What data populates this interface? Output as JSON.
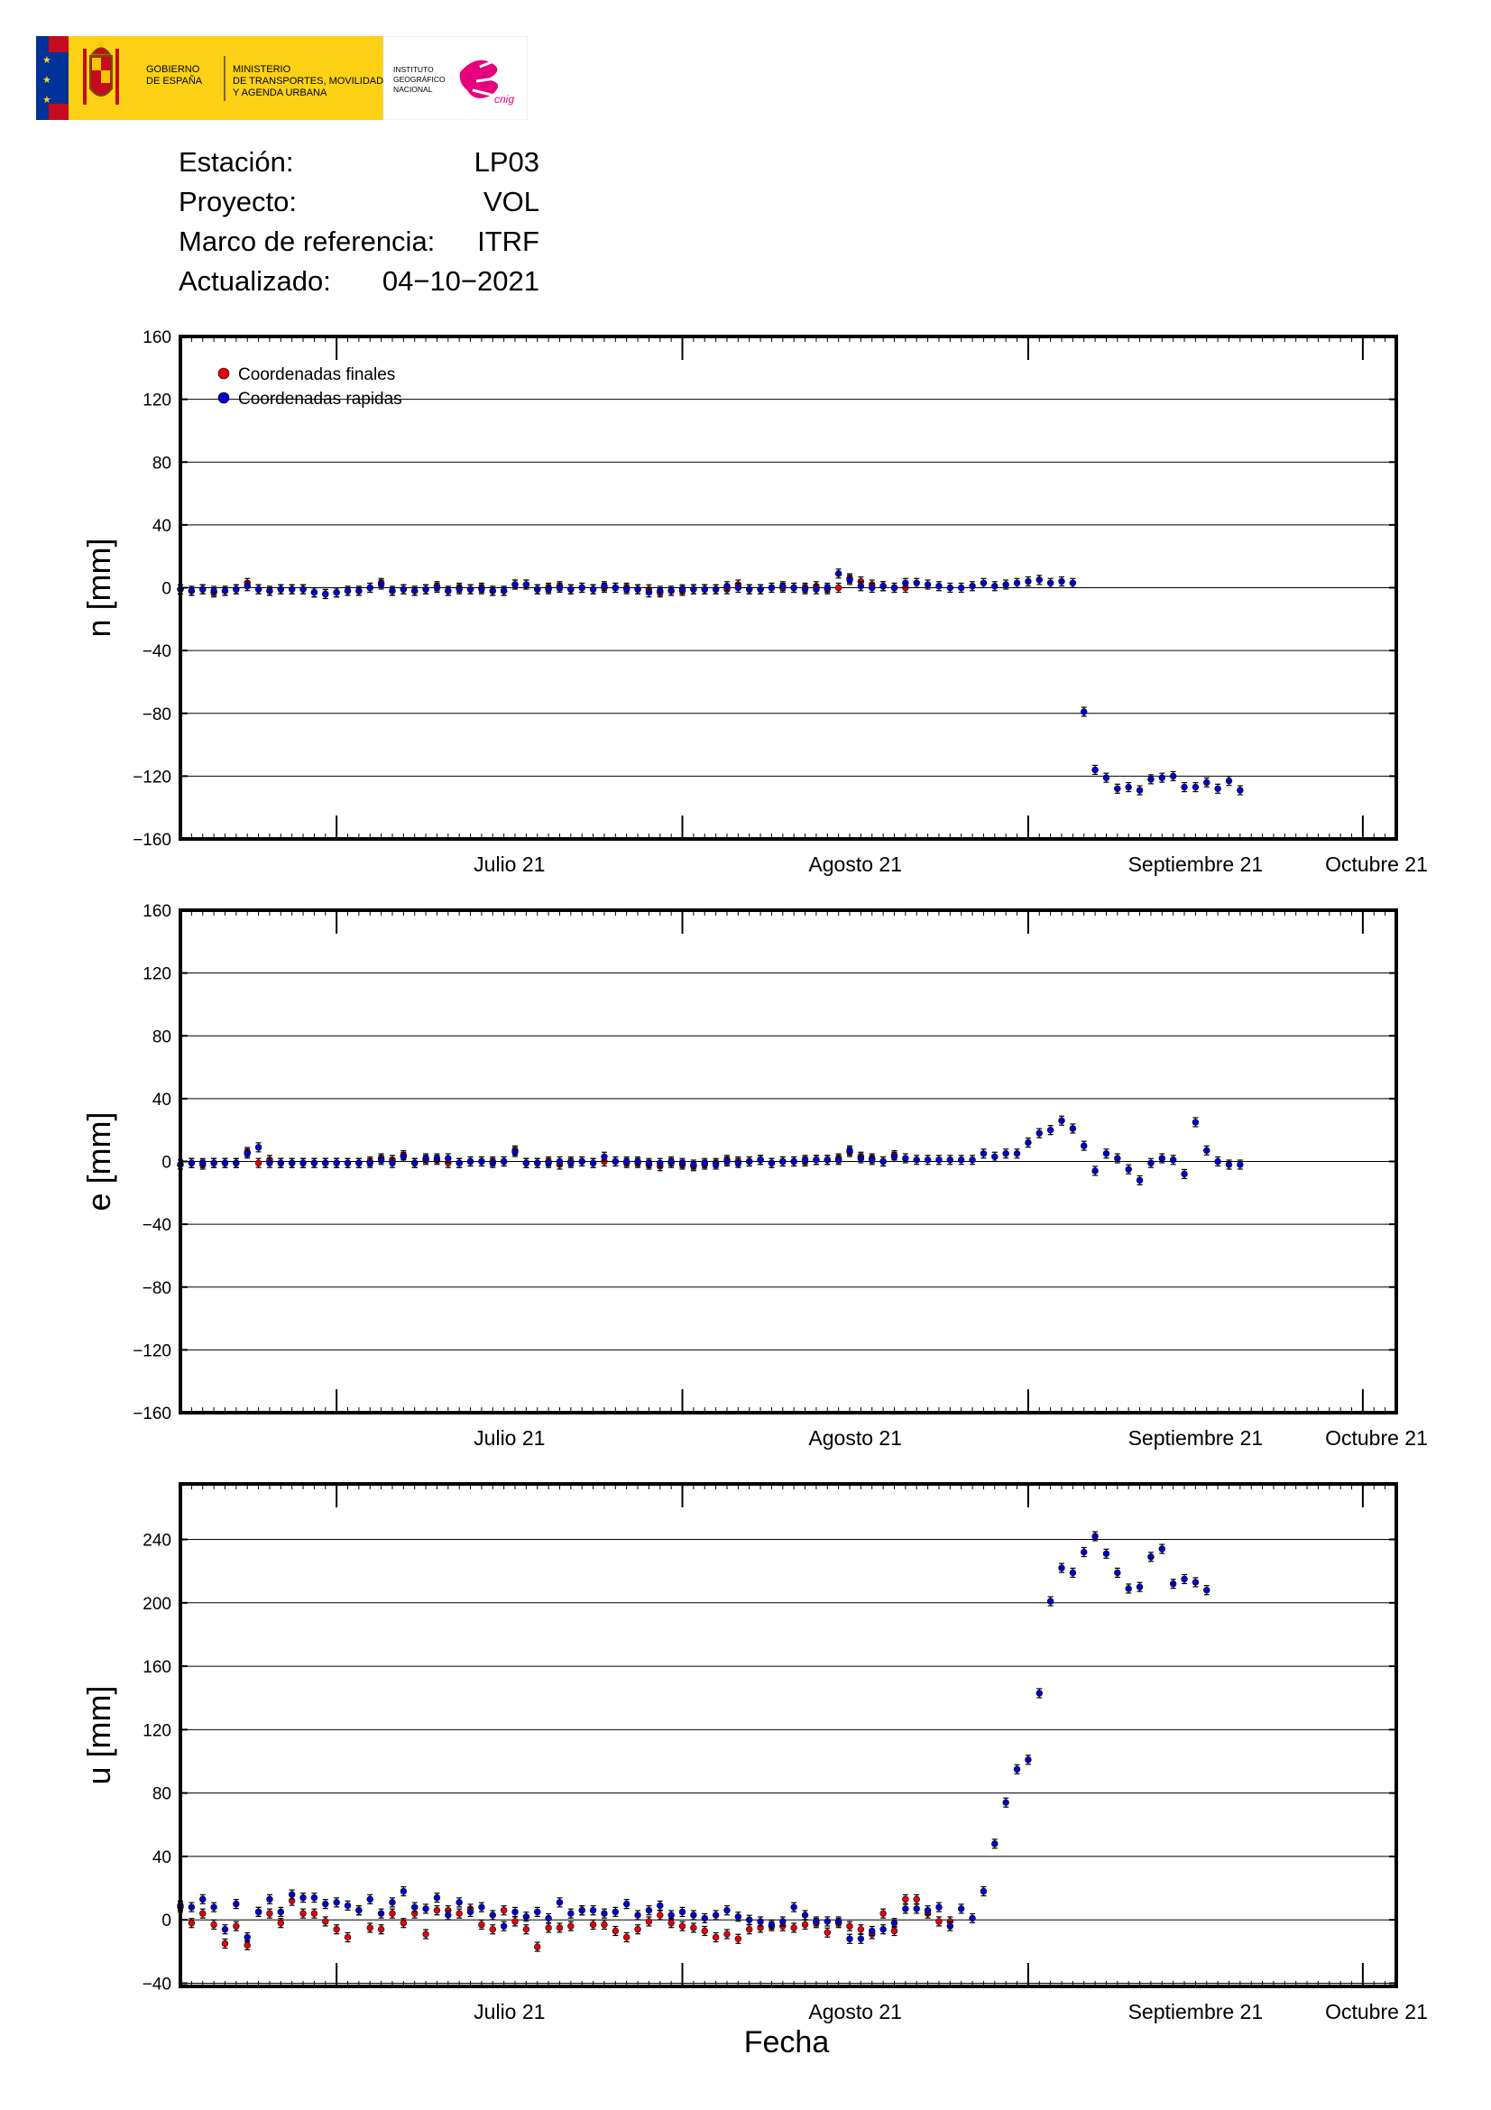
{
  "logo": {
    "gobierno": [
      "GOBIERNO",
      "DE ESPAÑA"
    ],
    "ministerio": [
      "MINISTERIO",
      "DE TRANSPORTES, MOVILIDAD",
      "Y AGENDA URBANA"
    ],
    "instituto": [
      "INSTITUTO",
      "GEOGRÁFICO",
      "NACIONAL"
    ],
    "cnig": "cnig",
    "colors": {
      "yellow": "#fcd116",
      "red": "#c60b1e",
      "eu_blue": "#003399",
      "cnig_magenta": "#e6007e"
    }
  },
  "header": {
    "rows": [
      {
        "label": "Estación:",
        "value": "LP03"
      },
      {
        "label": "Proyecto:",
        "value": "VOL"
      },
      {
        "label": "Marco de referencia:",
        "value": "ITRF"
      },
      {
        "label": "Actualizado:",
        "value": "04−10−2021"
      }
    ]
  },
  "legend": {
    "final_label": "Coordenadas finales",
    "rapid_label": "Coordenadas rapidas",
    "final_color": "#e3000f",
    "rapid_color": "#0000cc"
  },
  "xlabel": "Fecha",
  "chart_data": [
    {
      "type": "scatter",
      "ylabel": "n [mm]",
      "ylim": [
        -160,
        160
      ],
      "yticks": [
        160,
        120,
        80,
        40,
        0,
        -40,
        -80,
        -120,
        -160
      ],
      "x_domain": [
        "2021-06-17",
        "2021-10-04"
      ],
      "x_tick_labels": [
        {
          "date": "2021-07-01",
          "label": "Julio 21"
        },
        {
          "date": "2021-08-01",
          "label": "Agosto 21"
        },
        {
          "date": "2021-09-01",
          "label": "Septiembre 21"
        },
        {
          "date": "2021-10-01",
          "label": "Octubre 21"
        }
      ],
      "grid": "horizontal",
      "legend_position": "top-left",
      "series": [
        {
          "name": "Coordenadas finales",
          "color": "#e3000f",
          "start_date": "2021-06-17",
          "values": [
            -1,
            -2,
            -1,
            -3,
            -2,
            -1,
            3,
            -1,
            -2,
            -1,
            -1,
            -1,
            -3,
            -4,
            -3,
            -2,
            -2,
            0,
            3,
            -2,
            -1,
            -2,
            -1,
            1,
            -2,
            0,
            -1,
            0,
            -2,
            -2,
            2,
            2,
            -1,
            0,
            1,
            -1,
            0,
            -1,
            0,
            0,
            0,
            -1,
            -1,
            -3,
            -2,
            -2,
            -1,
            -1,
            -1,
            -1,
            2,
            -1,
            -1,
            0,
            0,
            0,
            0,
            1,
            -1,
            0,
            6,
            4,
            2,
            1,
            0,
            0,
            null,
            null,
            null,
            null,
            null,
            null,
            null,
            null,
            null,
            null,
            null,
            null,
            null,
            null,
            null,
            null,
            null,
            null,
            null,
            null,
            null,
            null,
            null,
            null,
            null,
            null,
            null,
            null,
            null,
            null,
            null,
            null,
            null,
            null,
            null
          ]
        },
        {
          "name": "Coordenadas rapidas",
          "color": "#0000cc",
          "start_date": "2021-06-17",
          "values": [
            -1,
            -2,
            -1,
            -2,
            -2,
            -1,
            1,
            -1,
            -2,
            -1,
            -1,
            -1,
            -3,
            -4,
            -3,
            -2,
            -2,
            0,
            2,
            -2,
            -1,
            -2,
            -1,
            0,
            -2,
            -1,
            -1,
            -1,
            -2,
            -2,
            2,
            2,
            -1,
            -1,
            0,
            -1,
            0,
            -1,
            1,
            0,
            -1,
            -1,
            -3,
            -2,
            -2,
            -1,
            -1,
            -1,
            -1,
            1,
            0,
            -1,
            -1,
            0,
            1,
            0,
            -1,
            -1,
            0,
            9,
            5,
            1,
            0,
            1,
            0,
            3,
            3,
            2,
            1,
            0,
            0,
            1,
            3,
            1,
            2,
            3,
            4,
            5,
            3,
            4,
            3,
            -79,
            -116,
            -121,
            -128,
            -127,
            -129,
            -122,
            -121,
            -120,
            -127,
            -127,
            -124,
            -128,
            -123,
            -129
          ]
        }
      ]
    },
    {
      "type": "scatter",
      "ylabel": "e [mm]",
      "ylim": [
        -160,
        160
      ],
      "yticks": [
        160,
        120,
        80,
        40,
        0,
        -40,
        -80,
        -120,
        -160
      ],
      "x_domain": [
        "2021-06-17",
        "2021-10-04"
      ],
      "x_tick_labels": [
        {
          "date": "2021-07-01",
          "label": "Julio 21"
        },
        {
          "date": "2021-08-01",
          "label": "Agosto 21"
        },
        {
          "date": "2021-09-01",
          "label": "Septiembre 21"
        },
        {
          "date": "2021-10-01",
          "label": "Octubre 21"
        }
      ],
      "grid": "horizontal",
      "series": [
        {
          "name": "Coordenadas finales",
          "color": "#e3000f",
          "start_date": "2021-06-17",
          "values": [
            -2,
            -1,
            -2,
            -1,
            -1,
            -1,
            6,
            -1,
            1,
            -1,
            -1,
            -1,
            -1,
            -1,
            -1,
            -1,
            -1,
            0,
            2,
            1,
            4,
            -1,
            1,
            1,
            -1,
            -1,
            0,
            0,
            0,
            0,
            7,
            -1,
            -1,
            0,
            -2,
            0,
            0,
            -1,
            0,
            0,
            -1,
            -1,
            -2,
            -3,
            -1,
            -2,
            -3,
            -2,
            -1,
            1,
            0,
            0,
            1,
            -1,
            0,
            0,
            0,
            1,
            1,
            2,
            6,
            3,
            2,
            0,
            4,
            null,
            null,
            null,
            null,
            null,
            null,
            null,
            null,
            null,
            null,
            null,
            null,
            null,
            null,
            null,
            null,
            null,
            null,
            null,
            null,
            null,
            null,
            null,
            null,
            null,
            null,
            null,
            null,
            null,
            null,
            null,
            null,
            null,
            null,
            null
          ]
        },
        {
          "name": "Coordenadas rapidas",
          "color": "#0000cc",
          "start_date": "2021-06-17",
          "values": [
            -2,
            -1,
            -1,
            -1,
            -1,
            -1,
            5,
            9,
            -1,
            -1,
            -1,
            -1,
            -1,
            -1,
            -1,
            -1,
            -1,
            -1,
            1,
            -1,
            3,
            -1,
            2,
            2,
            2,
            -1,
            0,
            0,
            -1,
            0,
            6,
            -1,
            -1,
            -1,
            0,
            -1,
            0,
            -1,
            3,
            0,
            0,
            0,
            -1,
            -1,
            0,
            -1,
            -2,
            -1,
            -2,
            0,
            -1,
            0,
            1,
            -1,
            0,
            0,
            1,
            1,
            1,
            1,
            7,
            2,
            1,
            0,
            3,
            2,
            1,
            1,
            1,
            1,
            1,
            1,
            5,
            3,
            5,
            5,
            12,
            18,
            20,
            26,
            21,
            10,
            -6,
            5,
            2,
            -5,
            -12,
            -1,
            2,
            1,
            -8,
            25,
            7,
            0,
            -2,
            -2
          ]
        }
      ]
    },
    {
      "type": "scatter",
      "ylabel": "u [mm]",
      "ylim": [
        -42,
        275
      ],
      "yticks": [
        240,
        200,
        160,
        120,
        80,
        40,
        0,
        -40
      ],
      "x_domain": [
        "2021-06-17",
        "2021-10-04"
      ],
      "x_tick_labels": [
        {
          "date": "2021-07-01",
          "label": "Julio 21"
        },
        {
          "date": "2021-08-01",
          "label": "Agosto 21"
        },
        {
          "date": "2021-09-01",
          "label": "Septiembre 21"
        },
        {
          "date": "2021-10-01",
          "label": "Octubre 21"
        }
      ],
      "grid": "horizontal",
      "series": [
        {
          "name": "Coordenadas finales",
          "color": "#e3000f",
          "start_date": "2021-06-17",
          "values": [
            8,
            -2,
            4,
            -3,
            -15,
            -4,
            -16,
            5,
            4,
            -2,
            12,
            4,
            4,
            -1,
            -6,
            -11,
            6,
            -5,
            -6,
            4,
            -2,
            4,
            -9,
            6,
            6,
            4,
            7,
            -3,
            -6,
            6,
            -1,
            -6,
            -17,
            -5,
            -5,
            -4,
            6,
            -3,
            -3,
            -7,
            -11,
            -6,
            -1,
            3,
            -2,
            -4,
            -5,
            -7,
            -11,
            -9,
            -12,
            -6,
            -5,
            -4,
            -4,
            -5,
            -3,
            -2,
            -8,
            -2,
            -4,
            -6,
            -9,
            4,
            -7,
            13,
            13,
            4,
            -1,
            -1,
            null,
            null,
            null,
            null,
            null,
            null,
            null,
            null,
            null,
            null,
            null,
            null,
            null,
            null,
            null,
            null,
            null,
            null,
            null,
            null,
            null,
            null,
            null,
            null,
            null,
            null,
            null,
            null,
            null,
            null
          ]
        },
        {
          "name": "Coordenadas rapidas",
          "color": "#0000cc",
          "start_date": "2021-06-17",
          "values": [
            9,
            8,
            13,
            8,
            -6,
            10,
            -11,
            5,
            13,
            5,
            16,
            14,
            14,
            10,
            11,
            9,
            6,
            13,
            4,
            11,
            18,
            8,
            7,
            14,
            3,
            11,
            5,
            8,
            3,
            -4,
            5,
            2,
            5,
            1,
            11,
            4,
            6,
            6,
            4,
            5,
            10,
            3,
            6,
            9,
            3,
            5,
            3,
            1,
            3,
            6,
            2,
            0,
            -1,
            -3,
            -1,
            8,
            3,
            -1,
            -1,
            -1,
            -12,
            -12,
            -7,
            -6,
            -2,
            7,
            7,
            6,
            8,
            -4,
            7,
            1,
            18,
            48,
            74,
            95,
            101,
            143,
            201,
            222,
            219,
            232,
            242,
            231,
            219,
            209,
            210,
            229,
            234,
            212,
            215,
            213,
            208
          ]
        }
      ]
    }
  ]
}
